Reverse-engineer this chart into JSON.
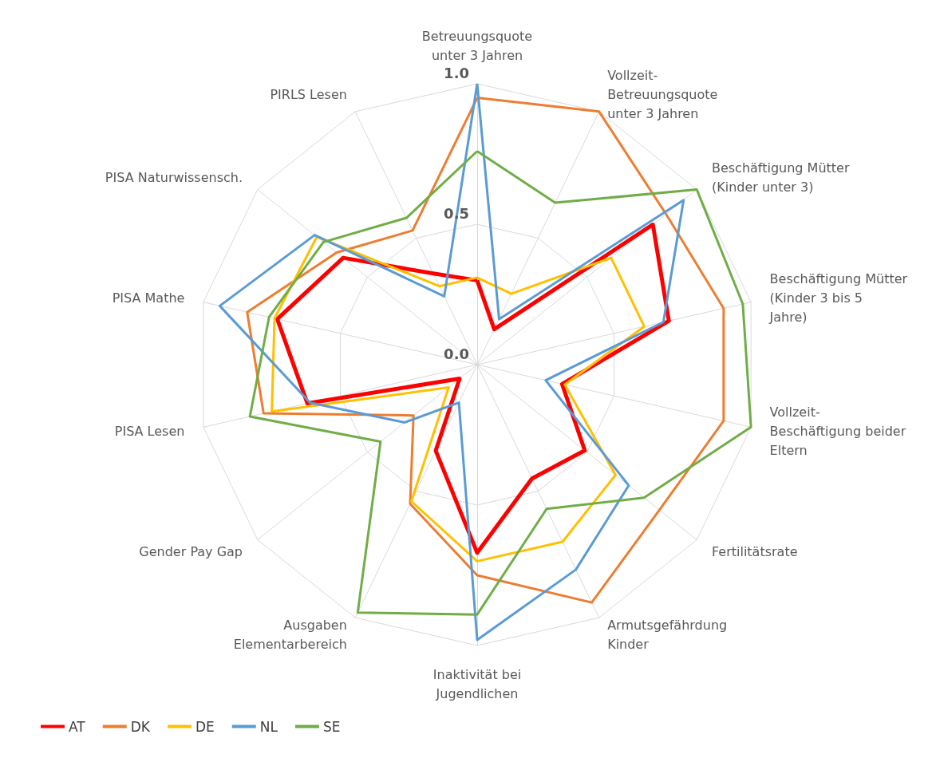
{
  "chart_data": {
    "type": "radar",
    "categories": [
      "Betreuungsquote unter 3 Jahren",
      "Vollzeit-Betreuungsquote unter 3 Jahren",
      "Beschäftigung Mütter (Kinder unter 3)",
      "Beschäftigung Mütter (Kinder 3 bis 5 Jahre)",
      "Vollzeit-Beschäftigung beider Eltern",
      "Fertilitätsrate",
      "Armutsgefährdung Kinder",
      "Inaktivität bei Jugendlichen",
      "Ausgaben Elementarbereich",
      "Gender Pay Gap",
      "PISA Lesen",
      "PISA Mathe",
      "PISA Naturwissensch.",
      "PIRLS Lesen"
    ],
    "series": [
      {
        "name": "AT",
        "color": "#ff0000",
        "values": [
          0.3,
          0.14,
          0.8,
          0.7,
          0.31,
          0.49,
          0.45,
          0.67,
          0.34,
          0.08,
          0.62,
          0.73,
          0.61,
          0.36
        ]
      },
      {
        "name": "DK",
        "color": "#ed7d31",
        "values": [
          0.95,
          1.0,
          0.86,
          0.9,
          0.9,
          0.83,
          0.94,
          0.75,
          0.55,
          0.29,
          0.78,
          0.84,
          0.64,
          0.53
        ]
      },
      {
        "name": "DE",
        "color": "#ffc000",
        "values": [
          0.31,
          0.28,
          0.61,
          0.61,
          0.32,
          0.63,
          0.7,
          0.7,
          0.54,
          0.13,
          0.75,
          0.74,
          0.73,
          0.31
        ]
      },
      {
        "name": "NL",
        "color": "#5b9bd5",
        "values": [
          1.0,
          0.18,
          0.94,
          0.68,
          0.25,
          0.69,
          0.81,
          0.98,
          0.15,
          0.33,
          0.61,
          0.94,
          0.74,
          0.27
        ]
      },
      {
        "name": "SE",
        "color": "#70ad47",
        "values": [
          0.76,
          0.64,
          1.0,
          0.97,
          1.0,
          0.76,
          0.57,
          0.89,
          0.98,
          0.44,
          0.83,
          0.76,
          0.7,
          0.58
        ]
      }
    ],
    "ylim": [
      0,
      1
    ],
    "yticks": [
      {
        "value": 0,
        "label": "0.0"
      },
      {
        "value": 0.5,
        "label": "0.5"
      },
      {
        "value": 1,
        "label": "1.0"
      }
    ],
    "grid": true,
    "legend": "bottom left",
    "marker": "none",
    "line_style": "solid"
  }
}
